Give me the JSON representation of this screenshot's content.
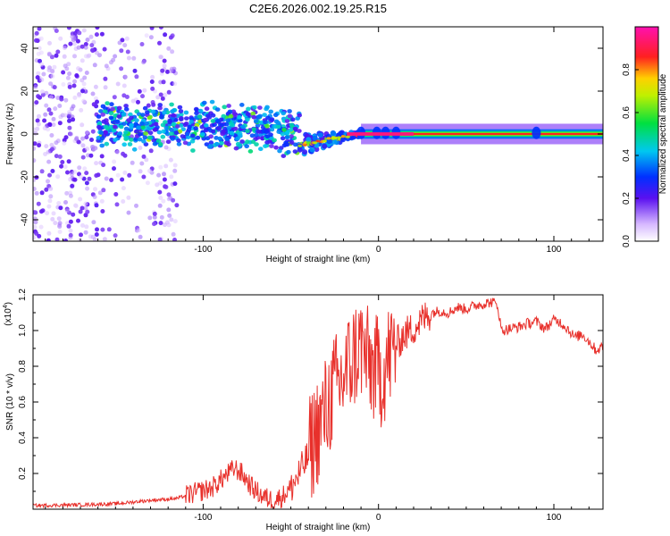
{
  "figure_title": "C2E6.2026.002.19.25.R15",
  "colors": {
    "snr_line": "#e8302b",
    "axis": "#000000",
    "spectrogram_cool": "#6a14f0",
    "spectrogram_hot": "#ff1a1a"
  },
  "chart_data": [
    {
      "type": "heatmap",
      "name": "spectrogram",
      "xlabel": "Height of straight line (km)",
      "ylabel": "Frequency (Hz)",
      "xlim": [
        -197,
        128
      ],
      "ylim": [
        -50,
        50
      ],
      "x_ticks": [
        -100,
        0,
        100
      ],
      "x_tick_labels": [
        "-100",
        "0",
        "100"
      ],
      "y_ticks": [
        -40,
        -20,
        0,
        20,
        40
      ],
      "y_tick_labels": [
        "-40",
        "-20",
        "0",
        "20",
        "40"
      ],
      "colorbar": {
        "label": "Normalized spectral amplitude",
        "range": [
          0,
          1
        ],
        "ticks": [
          0,
          0.2,
          0.4,
          0.6,
          0.8
        ],
        "tick_labels": [
          "0.0",
          "0.2",
          "0.4",
          "0.6",
          "0.8"
        ],
        "colormap": "rainbow (white to violet, blue, cyan, green, yellow, red, magenta)"
      },
      "features": [
        {
          "region": "noise",
          "x_range": [
            -197,
            -115
          ],
          "freq_range": [
            -50,
            50
          ],
          "amplitude": 0.12
        },
        {
          "region": "band",
          "x_range": [
            -160,
            -45
          ],
          "freq_center": 4,
          "freq_width": 12,
          "amplitude": 0.35
        },
        {
          "region": "converging",
          "x_range": [
            -45,
            -10
          ],
          "freq_center_start": -5,
          "freq_center_end": 0,
          "amplitude": 0.75
        },
        {
          "region": "carrier",
          "x_range": [
            -10,
            128
          ],
          "freq_center": 0,
          "freq_width": 4,
          "amplitude": 0.95
        }
      ]
    },
    {
      "type": "line",
      "name": "snr",
      "xlabel": "Height of straight line (km)",
      "ylabel": "SNR (10 * v/v)",
      "y_multiplier": "(x10",
      "y_multiplier_exp": "4",
      "y_multiplier_close": ")",
      "xlim": [
        -197,
        128
      ],
      "ylim": [
        0,
        1.2
      ],
      "x_ticks": [
        -100,
        0,
        100
      ],
      "x_tick_labels": [
        "-100",
        "0",
        "100"
      ],
      "y_ticks": [
        0.2,
        0.4,
        0.6,
        0.8,
        1.0,
        1.2
      ],
      "y_tick_labels": [
        "0.2",
        "0.4",
        "0.6",
        "0.8",
        "1.0",
        "1.2"
      ],
      "series": [
        {
          "name": "SNR",
          "color": "#e8302b",
          "x": [
            -197,
            -170,
            -150,
            -130,
            -115,
            -105,
            -95,
            -88,
            -82,
            -78,
            -72,
            -66,
            -60,
            -55,
            -50,
            -45,
            -40,
            -36,
            -33,
            -30,
            -26,
            -22,
            -18,
            -14,
            -10,
            -6,
            -2,
            2,
            6,
            10,
            14,
            18,
            22,
            26,
            30,
            35,
            40,
            45,
            50,
            55,
            60,
            65,
            68,
            70,
            75,
            80,
            85,
            90,
            95,
            100,
            103,
            108,
            112,
            116,
            120,
            124,
            128
          ],
          "y": [
            0.02,
            0.025,
            0.03,
            0.05,
            0.06,
            0.09,
            0.12,
            0.18,
            0.23,
            0.2,
            0.12,
            0.07,
            0.05,
            0.07,
            0.12,
            0.2,
            0.3,
            0.42,
            0.48,
            0.55,
            0.66,
            0.7,
            0.78,
            0.86,
            0.92,
            0.82,
            0.78,
            0.76,
            0.85,
            0.92,
            0.97,
            1.0,
            1.03,
            1.07,
            1.1,
            1.11,
            1.1,
            1.13,
            1.12,
            1.14,
            1.15,
            1.16,
            1.14,
            1.0,
            1.01,
            1.02,
            1.04,
            1.05,
            1.01,
            1.06,
            1.05,
            1.01,
            0.96,
            0.98,
            0.94,
            0.89,
            0.91
          ]
        }
      ]
    }
  ]
}
